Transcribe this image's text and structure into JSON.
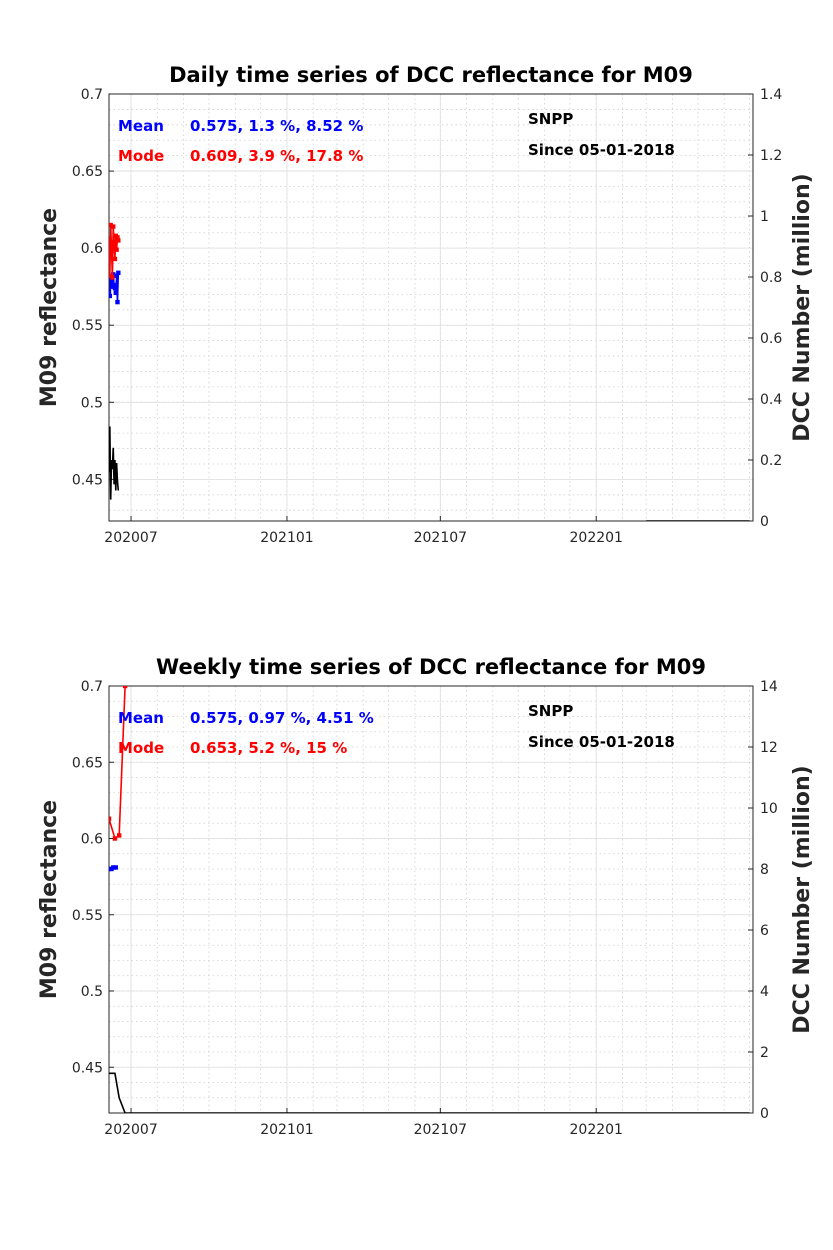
{
  "chart_data": [
    {
      "type": "line",
      "title": "Daily time series of DCC reflectance for M09",
      "ylabel_left": "M09 reflectance",
      "ylabel_right": "DCC Number (million)",
      "x_ticks": [
        "202007",
        "202101",
        "202107",
        "202201"
      ],
      "x_tick_dates": [
        "2020-07-01",
        "2021-01-01",
        "2021-07-01",
        "2022-01-01"
      ],
      "xlim": [
        "2020-06-05",
        "2022-07-05"
      ],
      "ylim_left": [
        0.423,
        0.7
      ],
      "yticks_left": [
        "0.45",
        "0.5",
        "0.55",
        "0.6",
        "0.65",
        "0.7"
      ],
      "ylim_right": [
        0,
        1.4
      ],
      "yticks_right": [
        "0",
        "0.2",
        "0.4",
        "0.6",
        "0.8",
        "1",
        "1.2",
        "1.4"
      ],
      "grid": true,
      "annotations": {
        "mean_label": "Mean",
        "mean_stats": "0.575, 1.3 %, 8.52 %",
        "mode_label": "Mode",
        "mode_stats": "0.609, 3.9 %, 17.8 %",
        "satellite": "SNPP",
        "since": "Since 05-01-2018"
      },
      "series": [
        {
          "name": "Mean",
          "color": "#0000ff",
          "axis": "left",
          "x": [
            "2020-06-05",
            "2020-06-06",
            "2020-06-07",
            "2020-06-08",
            "2020-06-09",
            "2020-06-10",
            "2020-06-11",
            "2020-06-12",
            "2020-06-13",
            "2020-06-14",
            "2020-06-15",
            "2020-06-16"
          ],
          "y": [
            0.572,
            0.569,
            0.581,
            0.578,
            0.575,
            0.583,
            0.576,
            0.574,
            0.571,
            0.582,
            0.565,
            0.584
          ]
        },
        {
          "name": "Mode",
          "color": "#ff0000",
          "axis": "left",
          "x": [
            "2020-06-05",
            "2020-06-06",
            "2020-06-07",
            "2020-06-08",
            "2020-06-09",
            "2020-06-10",
            "2020-06-11",
            "2020-06-12",
            "2020-06-13",
            "2020-06-14",
            "2020-06-15",
            "2020-06-16"
          ],
          "y": [
            0.606,
            0.582,
            0.615,
            0.598,
            0.581,
            0.614,
            0.604,
            0.593,
            0.608,
            0.599,
            0.607,
            0.605
          ]
        },
        {
          "color": "#000000",
          "axis": "right",
          "x": [
            "2020-06-05",
            "2020-06-06",
            "2020-06-07",
            "2020-06-08",
            "2020-06-09",
            "2020-06-10",
            "2020-06-11",
            "2020-06-12",
            "2020-06-13",
            "2020-06-14",
            "2020-06-15",
            "2020-06-16"
          ],
          "y": [
            0.16,
            0.31,
            0.07,
            0.2,
            0.17,
            0.24,
            0.12,
            0.2,
            0.1,
            0.19,
            0.13,
            0.1
          ]
        },
        {
          "color": "#000000",
          "axis": "right",
          "x": [
            "2022-03-01",
            "2022-07-01"
          ],
          "y": [
            0.0,
            0.0
          ]
        }
      ]
    },
    {
      "type": "line",
      "title": "Weekly time series of DCC reflectance for M09",
      "ylabel_left": "M09 reflectance",
      "ylabel_right": "DCC Number (million)",
      "x_ticks": [
        "202007",
        "202101",
        "202107",
        "202201"
      ],
      "x_tick_dates": [
        "2020-07-01",
        "2021-01-01",
        "2021-07-01",
        "2022-01-01"
      ],
      "xlim": [
        "2020-06-05",
        "2022-07-05"
      ],
      "ylim_left": [
        0.42,
        0.7
      ],
      "yticks_left": [
        "0.45",
        "0.5",
        "0.55",
        "0.6",
        "0.65",
        "0.7"
      ],
      "ylim_right": [
        0,
        14
      ],
      "yticks_right": [
        "0",
        "2",
        "4",
        "6",
        "8",
        "10",
        "12",
        "14"
      ],
      "grid": true,
      "annotations": {
        "mean_label": "Mean",
        "mean_stats": "0.575, 0.97 %, 4.51 %",
        "mode_label": "Mode",
        "mode_stats": "0.653, 5.2 %, 15 %",
        "satellite": "SNPP",
        "since": "Since 05-01-2018"
      },
      "series": [
        {
          "name": "Mean",
          "color": "#0000ff",
          "axis": "left",
          "x": [
            "2020-06-05",
            "2020-06-08",
            "2020-06-10",
            "2020-06-13"
          ],
          "y": [
            0.58,
            0.58,
            0.581,
            0.581
          ]
        },
        {
          "name": "Mode",
          "color": "#ff0000",
          "axis": "left",
          "x": [
            "2020-06-05",
            "2020-06-12",
            "2020-06-17",
            "2020-06-24"
          ],
          "y": [
            0.613,
            0.6,
            0.602,
            0.7
          ]
        },
        {
          "color": "#000000",
          "axis": "right",
          "x": [
            "2020-06-05",
            "2020-06-12",
            "2020-06-17",
            "2020-06-24",
            "2022-07-01"
          ],
          "y": [
            1.3,
            1.3,
            0.5,
            0.0,
            0.0
          ]
        }
      ]
    }
  ]
}
